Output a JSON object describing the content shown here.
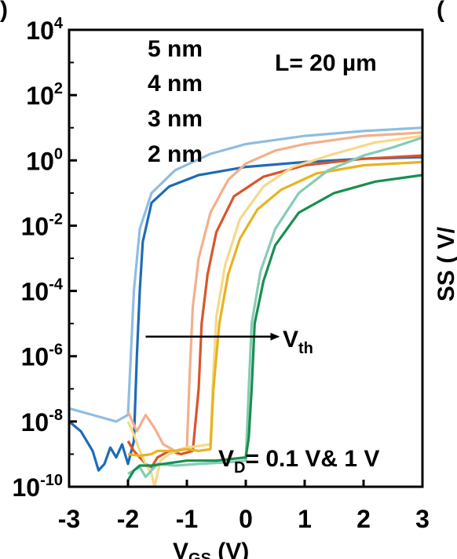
{
  "panel_marks": {
    "left": ")",
    "right": "("
  },
  "right_edge_text": "SS ( V/ ",
  "chart_data": {
    "type": "line",
    "title": "",
    "xlabel": "V",
    "xlabel_sub": "GS",
    "xlabel_unit": " (V)",
    "ylabel": "",
    "xlim": [
      -3,
      3
    ],
    "ylim_log10": [
      -10,
      4
    ],
    "yscale": "log",
    "xticks": [
      -3,
      -2,
      -1,
      0,
      1,
      2,
      3
    ],
    "xtick_labels": [
      "-3",
      "-2",
      "-1",
      "0",
      "1",
      "2",
      "3"
    ],
    "yticks": [
      {
        "base": "10",
        "exp": "4"
      },
      {
        "base": "10",
        "exp": "2"
      },
      {
        "base": "10",
        "exp": "0"
      },
      {
        "base": "10",
        "exp": "-2"
      },
      {
        "base": "10",
        "exp": "-4"
      },
      {
        "base": "10",
        "exp": "-6"
      },
      {
        "base": "10",
        "exp": "-8"
      },
      {
        "base": "10",
        "exp": "-10"
      }
    ],
    "legend_entries": [
      "5 nm",
      "4 nm",
      "3 nm",
      "2 nm"
    ],
    "annotations": {
      "length": "L= 20 µm",
      "vth_main": "V",
      "vth_sub": "th",
      "vd_main": "V",
      "vd_sub": "D",
      "vd_rest": "= 0.1 V& 1 V",
      "arrow_from_x": -1.7,
      "arrow_to_x": 0.55,
      "arrow_log_y": -5.4
    },
    "series": [
      {
        "color": "#8fbde3",
        "points": [
          [
            -3,
            -7.6
          ],
          [
            -2.6,
            -7.8
          ],
          [
            -2.2,
            -8.0
          ],
          [
            -2.0,
            -7.8
          ],
          [
            -1.9,
            -4.0
          ],
          [
            -1.8,
            -2.1
          ],
          [
            -1.6,
            -1.0
          ],
          [
            -1.2,
            -0.3
          ],
          [
            -0.6,
            0.2
          ],
          [
            0,
            0.5
          ],
          [
            1,
            0.75
          ],
          [
            2,
            0.9
          ],
          [
            3,
            1.0
          ]
        ]
      },
      {
        "color": "#1f6bb5",
        "points": [
          [
            -3,
            -8.0
          ],
          [
            -2.8,
            -8.3
          ],
          [
            -2.6,
            -8.9
          ],
          [
            -2.5,
            -9.5
          ],
          [
            -2.4,
            -9.3
          ],
          [
            -2.3,
            -8.8
          ],
          [
            -2.2,
            -9.1
          ],
          [
            -2.1,
            -8.7
          ],
          [
            -2.0,
            -9.3
          ],
          [
            -1.9,
            -8.6
          ],
          [
            -1.85,
            -6.0
          ],
          [
            -1.8,
            -4.0
          ],
          [
            -1.75,
            -2.5
          ],
          [
            -1.6,
            -1.3
          ],
          [
            -1.3,
            -0.8
          ],
          [
            -0.8,
            -0.45
          ],
          [
            0,
            -0.2
          ],
          [
            1,
            -0.05
          ],
          [
            2,
            0.05
          ],
          [
            3,
            0.1
          ]
        ]
      },
      {
        "color": "#f2b08c",
        "points": [
          [
            -2.0,
            -7.7
          ],
          [
            -1.85,
            -8.3
          ],
          [
            -1.7,
            -7.8
          ],
          [
            -1.55,
            -8.2
          ],
          [
            -1.4,
            -8.7
          ],
          [
            -1.2,
            -8.9
          ],
          [
            -1.0,
            -8.8
          ],
          [
            -0.95,
            -6.5
          ],
          [
            -0.9,
            -4.5
          ],
          [
            -0.8,
            -3.0
          ],
          [
            -0.6,
            -1.6
          ],
          [
            -0.3,
            -0.6
          ],
          [
            0,
            -0.1
          ],
          [
            0.5,
            0.3
          ],
          [
            1,
            0.5
          ],
          [
            2,
            0.75
          ],
          [
            3,
            0.85
          ]
        ]
      },
      {
        "color": "#d9552a",
        "points": [
          [
            -2.0,
            -8.6
          ],
          [
            -1.9,
            -8.9
          ],
          [
            -1.8,
            -9.1
          ],
          [
            -1.7,
            -9.3
          ],
          [
            -1.6,
            -9.4
          ],
          [
            -1.5,
            -9.1
          ],
          [
            -1.3,
            -8.9
          ],
          [
            -1.1,
            -9.0
          ],
          [
            -0.9,
            -8.9
          ],
          [
            -0.8,
            -7.0
          ],
          [
            -0.75,
            -5.0
          ],
          [
            -0.65,
            -3.5
          ],
          [
            -0.5,
            -2.2
          ],
          [
            -0.2,
            -1.1
          ],
          [
            0.3,
            -0.5
          ],
          [
            1,
            -0.15
          ],
          [
            2,
            0.05
          ],
          [
            3,
            0.15
          ]
        ]
      },
      {
        "color": "#f5d98a",
        "points": [
          [
            -2.0,
            -8.0
          ],
          [
            -1.9,
            -8.4
          ],
          [
            -1.8,
            -8.9
          ],
          [
            -1.7,
            -9.3
          ],
          [
            -1.6,
            -9.6
          ],
          [
            -1.55,
            -10.0
          ],
          [
            -1.45,
            -9.2
          ],
          [
            -1.3,
            -9.0
          ],
          [
            -1.0,
            -8.8
          ],
          [
            -0.6,
            -8.7
          ],
          [
            -0.55,
            -6.5
          ],
          [
            -0.5,
            -4.8
          ],
          [
            -0.35,
            -3.2
          ],
          [
            -0.1,
            -1.8
          ],
          [
            0.3,
            -0.8
          ],
          [
            0.8,
            -0.2
          ],
          [
            1.5,
            0.2
          ],
          [
            2.2,
            0.55
          ],
          [
            3,
            0.75
          ]
        ]
      },
      {
        "color": "#e8b320",
        "points": [
          [
            -2.0,
            -9.0
          ],
          [
            -1.8,
            -9.05
          ],
          [
            -1.6,
            -9.0
          ],
          [
            -1.5,
            -8.9
          ],
          [
            -1.4,
            -8.9
          ],
          [
            -1.2,
            -8.9
          ],
          [
            -1.0,
            -8.85
          ],
          [
            -0.8,
            -8.9
          ],
          [
            -0.6,
            -8.85
          ],
          [
            -0.55,
            -7.0
          ],
          [
            -0.45,
            -5.0
          ],
          [
            -0.3,
            -3.5
          ],
          [
            -0.1,
            -2.4
          ],
          [
            0.2,
            -1.5
          ],
          [
            0.6,
            -0.9
          ],
          [
            1.2,
            -0.4
          ],
          [
            2,
            -0.15
          ],
          [
            3,
            -0.05
          ]
        ]
      },
      {
        "color": "#86ccb4",
        "points": [
          [
            -2.0,
            -9.6
          ],
          [
            -1.8,
            -9.4
          ],
          [
            -1.7,
            -9.7
          ],
          [
            -1.6,
            -9.5
          ],
          [
            -1.5,
            -9.3
          ],
          [
            -1.2,
            -9.35
          ],
          [
            -0.8,
            -9.3
          ],
          [
            -0.3,
            -9.25
          ],
          [
            0,
            -9.2
          ],
          [
            0.05,
            -7.0
          ],
          [
            0.1,
            -5.0
          ],
          [
            0.25,
            -3.4
          ],
          [
            0.5,
            -2.1
          ],
          [
            0.9,
            -1.0
          ],
          [
            1.4,
            -0.3
          ],
          [
            2,
            0.15
          ],
          [
            2.5,
            0.4
          ],
          [
            3,
            0.7
          ]
        ]
      },
      {
        "color": "#17904f",
        "points": [
          [
            -2.0,
            -9.8
          ],
          [
            -1.9,
            -9.5
          ],
          [
            -1.8,
            -9.35
          ],
          [
            -1.6,
            -9.35
          ],
          [
            -1.4,
            -9.3
          ],
          [
            -1.0,
            -9.2
          ],
          [
            -0.5,
            -9.2
          ],
          [
            0,
            -9.1
          ],
          [
            0.05,
            -8.5
          ],
          [
            0.1,
            -7.0
          ],
          [
            0.15,
            -5.0
          ],
          [
            0.3,
            -3.7
          ],
          [
            0.5,
            -2.6
          ],
          [
            0.9,
            -1.6
          ],
          [
            1.5,
            -1.0
          ],
          [
            2.2,
            -0.65
          ],
          [
            3,
            -0.45
          ]
        ]
      }
    ]
  }
}
